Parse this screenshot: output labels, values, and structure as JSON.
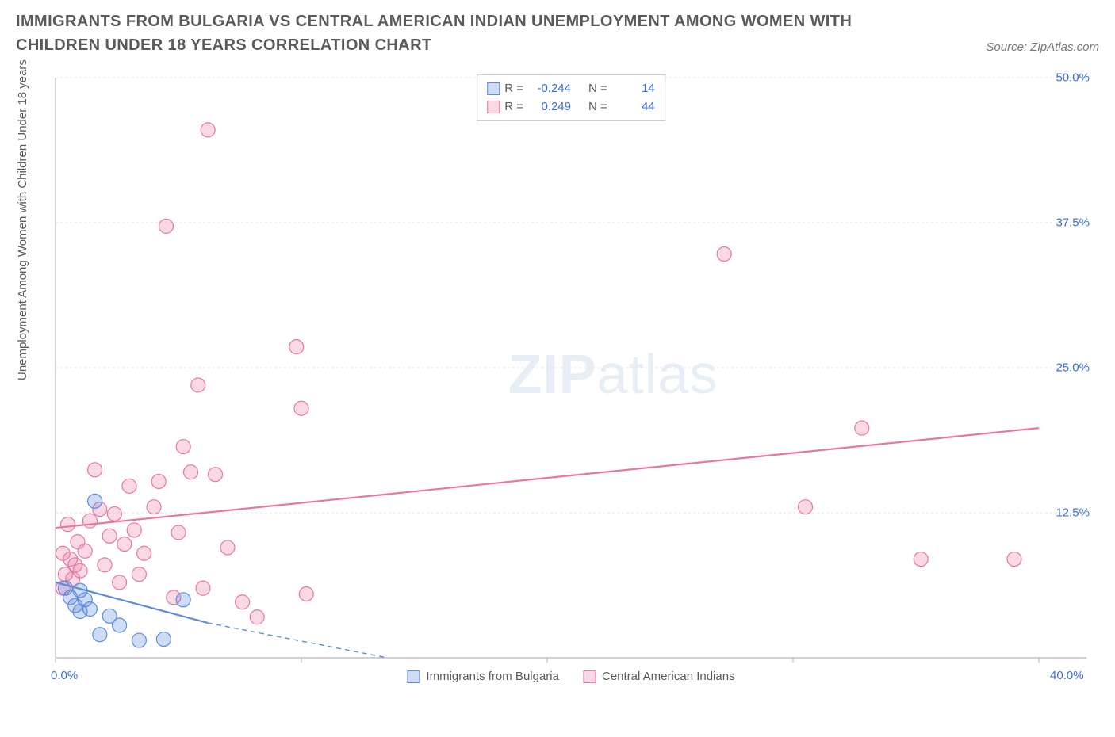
{
  "header": {
    "title": "IMMIGRANTS FROM BULGARIA VS CENTRAL AMERICAN INDIAN UNEMPLOYMENT AMONG WOMEN WITH CHILDREN UNDER 18 YEARS CORRELATION CHART",
    "source_prefix": "Source: ",
    "source_name": "ZipAtlas.com"
  },
  "chart": {
    "type": "scatter",
    "ylabel": "Unemployment Among Women with Children Under 18 years",
    "xlim": [
      0,
      40
    ],
    "ylim": [
      0,
      50
    ],
    "x_ticks": [
      0,
      10,
      20,
      30,
      40
    ],
    "x_tick_labels": {
      "first": "0.0%",
      "last": "40.0%"
    },
    "y_ticks": [
      12.5,
      25.0,
      37.5,
      50.0
    ],
    "y_tick_labels": [
      "12.5%",
      "25.0%",
      "37.5%",
      "50.0%"
    ],
    "grid_color": "#e6e6e6",
    "axis_color": "#b8b8b8",
    "background_color": "#ffffff",
    "marker_radius": 9,
    "marker_stroke_width": 1.2,
    "trend_line_width": 2.2,
    "series": {
      "bulgaria": {
        "label": "Immigrants from Bulgaria",
        "fill": "rgba(93,140,220,0.30)",
        "stroke": "#5d8cdc",
        "R": "-0.244",
        "N": "14",
        "trend": {
          "x1": 0,
          "y1": 6.5,
          "x2": 6.2,
          "y2": 3.0,
          "dash_x2": 13.5,
          "dash_y2": 0
        },
        "points": [
          {
            "x": 0.4,
            "y": 6.0
          },
          {
            "x": 0.6,
            "y": 5.2
          },
          {
            "x": 0.8,
            "y": 4.5
          },
          {
            "x": 1.0,
            "y": 5.8
          },
          {
            "x": 1.0,
            "y": 4.0
          },
          {
            "x": 1.2,
            "y": 5.0
          },
          {
            "x": 1.4,
            "y": 4.2
          },
          {
            "x": 1.6,
            "y": 13.5
          },
          {
            "x": 1.8,
            "y": 2.0
          },
          {
            "x": 2.2,
            "y": 3.6
          },
          {
            "x": 2.6,
            "y": 2.8
          },
          {
            "x": 3.4,
            "y": 1.5
          },
          {
            "x": 4.4,
            "y": 1.6
          },
          {
            "x": 5.2,
            "y": 5.0
          }
        ]
      },
      "cai": {
        "label": "Central American Indians",
        "fill": "rgba(232,120,160,0.28)",
        "stroke": "#e878a0",
        "R": "0.249",
        "N": "44",
        "trend": {
          "x1": 0,
          "y1": 11.2,
          "x2": 40,
          "y2": 19.8
        },
        "points": [
          {
            "x": 0.3,
            "y": 6.0
          },
          {
            "x": 0.3,
            "y": 9.0
          },
          {
            "x": 0.4,
            "y": 7.2
          },
          {
            "x": 0.5,
            "y": 11.5
          },
          {
            "x": 0.6,
            "y": 8.5
          },
          {
            "x": 0.7,
            "y": 6.8
          },
          {
            "x": 0.8,
            "y": 8.0
          },
          {
            "x": 0.9,
            "y": 10.0
          },
          {
            "x": 1.0,
            "y": 7.5
          },
          {
            "x": 1.2,
            "y": 9.2
          },
          {
            "x": 1.4,
            "y": 11.8
          },
          {
            "x": 1.6,
            "y": 16.2
          },
          {
            "x": 1.8,
            "y": 12.8
          },
          {
            "x": 2.0,
            "y": 8.0
          },
          {
            "x": 2.2,
            "y": 10.5
          },
          {
            "x": 2.4,
            "y": 12.4
          },
          {
            "x": 2.6,
            "y": 6.5
          },
          {
            "x": 2.8,
            "y": 9.8
          },
          {
            "x": 3.0,
            "y": 14.8
          },
          {
            "x": 3.2,
            "y": 11.0
          },
          {
            "x": 3.4,
            "y": 7.2
          },
          {
            "x": 3.6,
            "y": 9.0
          },
          {
            "x": 4.0,
            "y": 13.0
          },
          {
            "x": 4.2,
            "y": 15.2
          },
          {
            "x": 4.5,
            "y": 37.2
          },
          {
            "x": 4.8,
            "y": 5.2
          },
          {
            "x": 5.0,
            "y": 10.8
          },
          {
            "x": 5.2,
            "y": 18.2
          },
          {
            "x": 5.5,
            "y": 16.0
          },
          {
            "x": 5.8,
            "y": 23.5
          },
          {
            "x": 6.0,
            "y": 6.0
          },
          {
            "x": 6.2,
            "y": 45.5
          },
          {
            "x": 6.5,
            "y": 15.8
          },
          {
            "x": 7.0,
            "y": 9.5
          },
          {
            "x": 7.6,
            "y": 4.8
          },
          {
            "x": 8.2,
            "y": 3.5
          },
          {
            "x": 9.8,
            "y": 26.8
          },
          {
            "x": 10.0,
            "y": 21.5
          },
          {
            "x": 10.2,
            "y": 5.5
          },
          {
            "x": 27.2,
            "y": 34.8
          },
          {
            "x": 30.5,
            "y": 13.0
          },
          {
            "x": 32.8,
            "y": 19.8
          },
          {
            "x": 35.2,
            "y": 8.5
          },
          {
            "x": 39.0,
            "y": 8.5
          }
        ]
      }
    },
    "watermark": {
      "strong": "ZIP",
      "light": "atlas"
    }
  },
  "legend_top": {
    "r_label": "R =",
    "n_label": "N ="
  }
}
